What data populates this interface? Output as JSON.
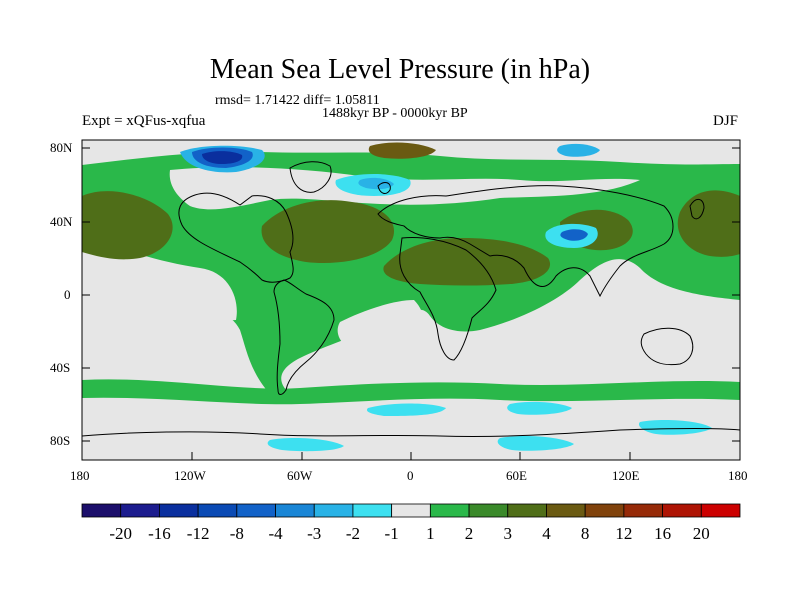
{
  "title": "Mean Sea Level Pressure (in hPa)",
  "stats": "rmsd= 1.71422 diff= 1.05811",
  "subtitle": "1488kyr BP - 0000kyr BP",
  "experiment": "Expt = xQFus-xqfua",
  "season": "DJF",
  "lat_ticks": [
    "80N",
    "40N",
    "0",
    "40S",
    "80S"
  ],
  "lon_ticks": [
    "180",
    "120W",
    "60W",
    "0",
    "60E",
    "120E",
    "180"
  ],
  "colorbar": {
    "colors": [
      "#1c0f6b",
      "#1c1c8e",
      "#0a2f9e",
      "#0a4ab4",
      "#1262c8",
      "#1a86d6",
      "#29b2e6",
      "#3de0f0",
      "#e6e6e6",
      "#2ab84a",
      "#3a8a2a",
      "#4f6e18",
      "#6a5a12",
      "#80420c",
      "#962a08",
      "#ae1404",
      "#cc0000"
    ],
    "labels": [
      "-20",
      "-16",
      "-12",
      "-8",
      "-4",
      "-3",
      "-2",
      "-1",
      "1",
      "2",
      "3",
      "4",
      "8",
      "12",
      "16",
      "20"
    ]
  },
  "map_colors": {
    "neutral": "#e6e6e6",
    "green": "#2ab84a",
    "olive": "#4f6e18",
    "brown": "#6a5a12",
    "cyan": "#3de0f0",
    "lightblue": "#29b2e6",
    "blue": "#1262c8",
    "darkblue": "#0a2f9e",
    "coast": "#000000"
  }
}
